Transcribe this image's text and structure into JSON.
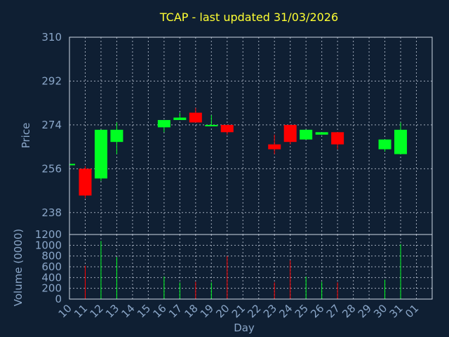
{
  "chart_data": [
    {
      "type": "candlestick",
      "title": "TCAP - last updated 31/03/2026",
      "ylabel": "Price",
      "ylim": [
        229,
        310
      ],
      "yticks": [
        310,
        292,
        274,
        256,
        238
      ],
      "grid": true,
      "colors": {
        "up": "#00ff22",
        "down": "#ff0000"
      },
      "candles": [
        {
          "day": "10",
          "open": 258,
          "close": 258,
          "high": 258,
          "low": 258
        },
        {
          "day": "11",
          "open": 256,
          "close": 245,
          "high": 257,
          "low": 244
        },
        {
          "day": "12",
          "open": 252,
          "close": 272,
          "high": 272,
          "low": 251
        },
        {
          "day": "13",
          "open": 267,
          "close": 272,
          "high": 275,
          "low": 262
        },
        {
          "day": "16",
          "open": 273,
          "close": 276,
          "high": 276,
          "low": 271
        },
        {
          "day": "17",
          "open": 276,
          "close": 277,
          "high": 279,
          "low": 276
        },
        {
          "day": "18",
          "open": 279,
          "close": 275,
          "high": 281,
          "low": 275
        },
        {
          "day": "19",
          "open": 274,
          "close": 274,
          "high": 278,
          "low": 274
        },
        {
          "day": "20",
          "open": 274,
          "close": 271,
          "high": 274,
          "low": 270
        },
        {
          "day": "23",
          "open": 266,
          "close": 264,
          "high": 270,
          "low": 262
        },
        {
          "day": "24",
          "open": 274,
          "close": 267,
          "high": 274,
          "low": 266
        },
        {
          "day": "25",
          "open": 268,
          "close": 272,
          "high": 272,
          "low": 268
        },
        {
          "day": "26",
          "open": 270,
          "close": 271,
          "high": 271,
          "low": 270
        },
        {
          "day": "27",
          "open": 271,
          "close": 266,
          "high": 271,
          "low": 264
        },
        {
          "day": "30",
          "open": 264,
          "close": 268,
          "high": 268,
          "low": 263
        },
        {
          "day": "31",
          "open": 262,
          "close": 272,
          "high": 275,
          "low": 262
        }
      ]
    },
    {
      "type": "bar",
      "ylabel": "Volume (0000)",
      "xlabel": "Day",
      "ylim": [
        0,
        1200
      ],
      "yticks": [
        1200,
        1000,
        800,
        600,
        400,
        200,
        0
      ],
      "grid": true,
      "categories": [
        "10",
        "11",
        "12",
        "13",
        "14",
        "15",
        "16",
        "17",
        "18",
        "19",
        "20",
        "21",
        "22",
        "23",
        "24",
        "25",
        "26",
        "27",
        "28",
        "29",
        "30",
        "31",
        "01"
      ],
      "bars": [
        {
          "day": "11",
          "value": 620,
          "color": "#ff0000"
        },
        {
          "day": "12",
          "value": 1080,
          "color": "#00ff22"
        },
        {
          "day": "13",
          "value": 780,
          "color": "#00ff22"
        },
        {
          "day": "16",
          "value": 420,
          "color": "#00ff22"
        },
        {
          "day": "17",
          "value": 310,
          "color": "#00ff22"
        },
        {
          "day": "18",
          "value": 320,
          "color": "#ff0000"
        },
        {
          "day": "19",
          "value": 310,
          "color": "#00ff22"
        },
        {
          "day": "20",
          "value": 800,
          "color": "#ff0000"
        },
        {
          "day": "23",
          "value": 310,
          "color": "#ff0000"
        },
        {
          "day": "24",
          "value": 720,
          "color": "#ff0000"
        },
        {
          "day": "25",
          "value": 420,
          "color": "#00ff22"
        },
        {
          "day": "26",
          "value": 320,
          "color": "#00ff22"
        },
        {
          "day": "27",
          "value": 310,
          "color": "#ff0000"
        },
        {
          "day": "30",
          "value": 360,
          "color": "#00ff22"
        },
        {
          "day": "31",
          "value": 1020,
          "color": "#00ff22"
        }
      ]
    }
  ]
}
